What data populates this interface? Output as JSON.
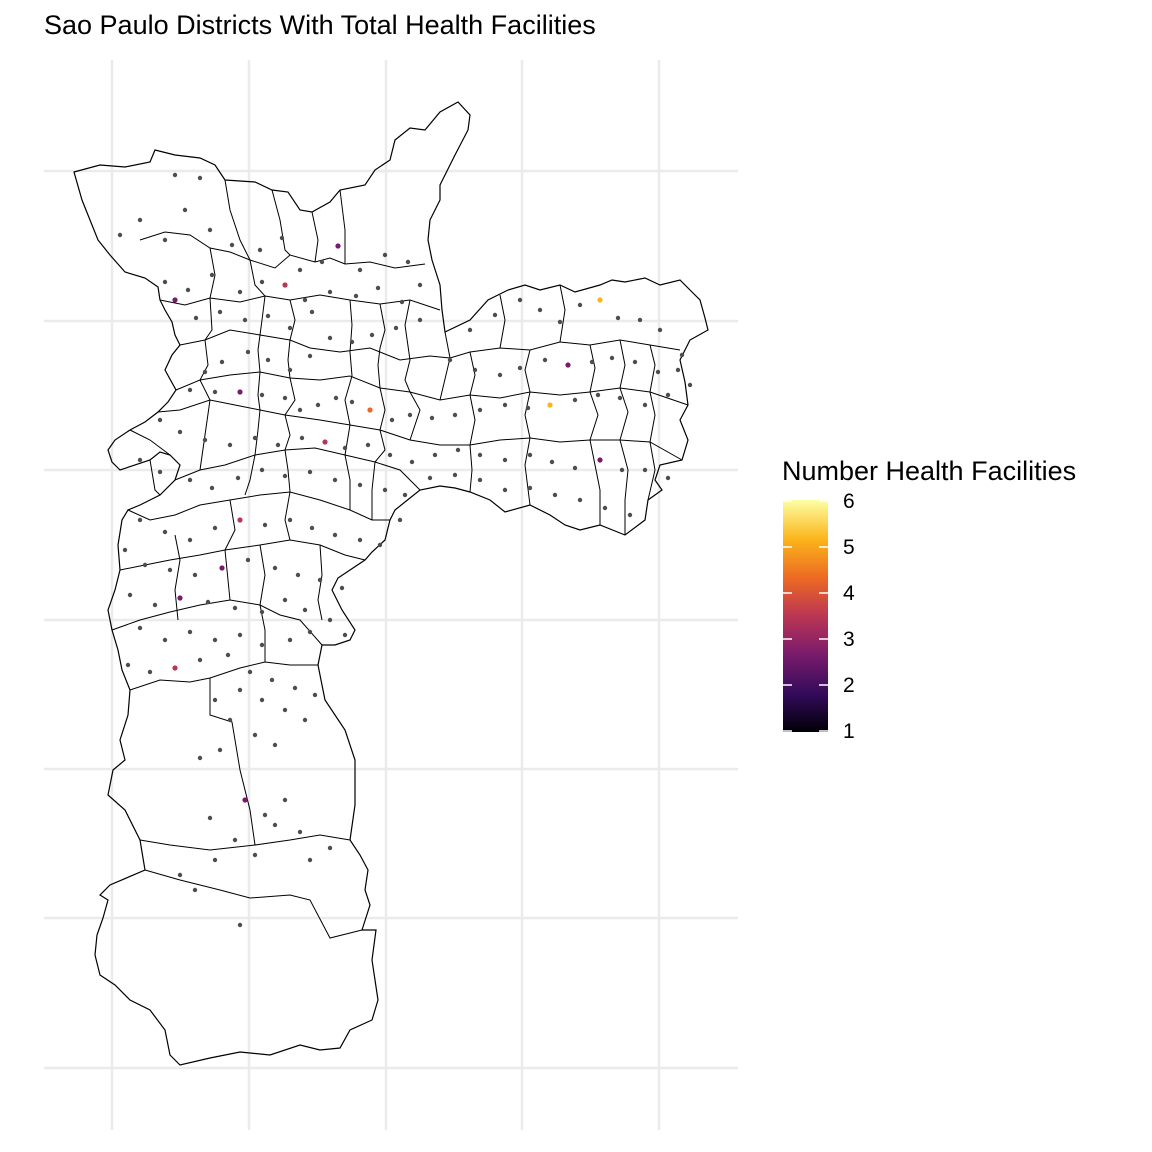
{
  "title": "Sao Paulo Districts With Total Health Facilities",
  "legend": {
    "title": "Number Health Facilities",
    "breaks": [
      "1",
      "2",
      "3",
      "4",
      "5",
      "6"
    ],
    "min": 1,
    "max": 6,
    "palette": [
      "#000004",
      "#320A5A",
      "#781B6C",
      "#BB3654",
      "#EC6824",
      "#FBB41A",
      "#FCFFA4"
    ]
  },
  "colors": {
    "district_outline": "#000000",
    "grid": "#EBEBEB",
    "background": "#FFFFFF",
    "default_point": "#4D4D4D"
  }
}
